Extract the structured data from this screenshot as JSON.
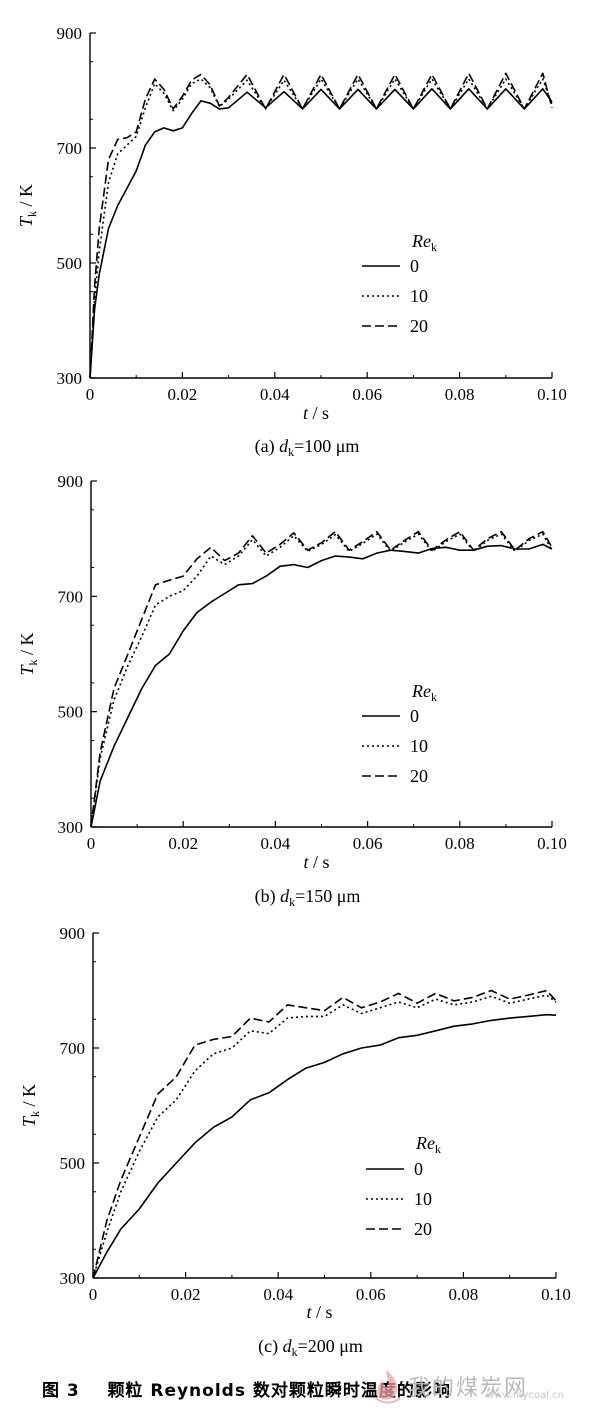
{
  "chart_data": [
    {
      "type": "line",
      "panel_label": "(a)",
      "subtitle": "(a) d",
      "subtitle_sub": "k",
      "subtitle_tail": "=100 μm",
      "ylabel": "T",
      "ylabel_sub": "k",
      "ylabel_unit": " / K",
      "xlabel": "t / s",
      "xlim": [
        0,
        0.1
      ],
      "ylim": [
        300,
        900
      ],
      "xticks": [
        "0",
        "0.02",
        "0.04",
        "0.06",
        "0.08",
        "0.10"
      ],
      "yticks": [
        "300",
        "500",
        "700",
        "900"
      ],
      "legend_title": "Re",
      "legend_title_sub": "k",
      "series": [
        {
          "name": "0",
          "style": "solid",
          "x": [
            0,
            0.001,
            0.002,
            0.004,
            0.006,
            0.008,
            0.01,
            0.012,
            0.014,
            0.016,
            0.018,
            0.02,
            0.022,
            0.024,
            0.026,
            0.028,
            0.03,
            0.034,
            0.038,
            0.042,
            0.046,
            0.05,
            0.054,
            0.058,
            0.062,
            0.066,
            0.07,
            0.074,
            0.078,
            0.082,
            0.086,
            0.09,
            0.094,
            0.098,
            0.1
          ],
          "y": [
            300,
            420,
            480,
            560,
            600,
            630,
            660,
            705,
            728,
            735,
            730,
            735,
            760,
            782,
            778,
            768,
            770,
            797,
            770,
            798,
            768,
            802,
            768,
            802,
            768,
            802,
            768,
            803,
            768,
            803,
            768,
            803,
            768,
            803,
            780
          ]
        },
        {
          "name": "10",
          "style": "dotted",
          "x": [
            0,
            0.001,
            0.002,
            0.004,
            0.006,
            0.008,
            0.01,
            0.012,
            0.014,
            0.016,
            0.018,
            0.02,
            0.022,
            0.024,
            0.026,
            0.028,
            0.03,
            0.034,
            0.038,
            0.042,
            0.046,
            0.05,
            0.054,
            0.058,
            0.062,
            0.066,
            0.07,
            0.074,
            0.078,
            0.082,
            0.086,
            0.09,
            0.094,
            0.098,
            0.1
          ],
          "y": [
            300,
            440,
            520,
            640,
            690,
            705,
            720,
            770,
            812,
            795,
            765,
            785,
            812,
            820,
            805,
            772,
            785,
            818,
            768,
            818,
            768,
            820,
            768,
            820,
            768,
            820,
            768,
            820,
            768,
            820,
            768,
            820,
            768,
            820,
            775
          ]
        },
        {
          "name": "20",
          "style": "dashed",
          "x": [
            0,
            0.001,
            0.002,
            0.004,
            0.006,
            0.008,
            0.01,
            0.012,
            0.014,
            0.016,
            0.018,
            0.02,
            0.022,
            0.024,
            0.026,
            0.028,
            0.03,
            0.034,
            0.038,
            0.042,
            0.046,
            0.05,
            0.054,
            0.058,
            0.062,
            0.066,
            0.07,
            0.074,
            0.078,
            0.082,
            0.086,
            0.09,
            0.094,
            0.098,
            0.1
          ],
          "y": [
            300,
            460,
            560,
            680,
            715,
            718,
            728,
            785,
            820,
            802,
            768,
            790,
            818,
            828,
            810,
            773,
            788,
            828,
            768,
            828,
            768,
            828,
            768,
            828,
            768,
            828,
            768,
            828,
            768,
            830,
            768,
            830,
            768,
            830,
            770
          ]
        }
      ]
    },
    {
      "type": "line",
      "panel_label": "(b)",
      "subtitle": "(b) d",
      "subtitle_sub": "k",
      "subtitle_tail": "=150 μm",
      "ylabel": "T",
      "ylabel_sub": "k",
      "ylabel_unit": " / K",
      "xlabel": "t / s",
      "xlim": [
        0,
        0.1
      ],
      "ylim": [
        300,
        900
      ],
      "xticks": [
        "0",
        "0.02",
        "0.04",
        "0.06",
        "0.08",
        "0.10"
      ],
      "yticks": [
        "300",
        "500",
        "700",
        "900"
      ],
      "legend_title": "Re",
      "legend_title_sub": "k",
      "series": [
        {
          "name": "0",
          "style": "solid",
          "x": [
            0,
            0.002,
            0.005,
            0.008,
            0.011,
            0.014,
            0.017,
            0.02,
            0.023,
            0.026,
            0.029,
            0.032,
            0.035,
            0.038,
            0.041,
            0.044,
            0.047,
            0.05,
            0.053,
            0.056,
            0.059,
            0.062,
            0.065,
            0.068,
            0.071,
            0.074,
            0.077,
            0.08,
            0.083,
            0.086,
            0.089,
            0.092,
            0.095,
            0.098,
            0.1
          ],
          "y": [
            300,
            380,
            440,
            490,
            540,
            580,
            600,
            640,
            672,
            690,
            705,
            720,
            722,
            735,
            752,
            755,
            750,
            762,
            770,
            768,
            765,
            775,
            780,
            778,
            775,
            783,
            785,
            780,
            780,
            787,
            788,
            782,
            782,
            790,
            782
          ]
        },
        {
          "name": "10",
          "style": "dotted",
          "x": [
            0,
            0.002,
            0.005,
            0.008,
            0.011,
            0.014,
            0.017,
            0.02,
            0.023,
            0.026,
            0.029,
            0.032,
            0.035,
            0.038,
            0.041,
            0.044,
            0.047,
            0.05,
            0.053,
            0.056,
            0.059,
            0.062,
            0.065,
            0.068,
            0.071,
            0.074,
            0.077,
            0.08,
            0.083,
            0.086,
            0.089,
            0.092,
            0.095,
            0.098,
            0.1
          ],
          "y": [
            300,
            420,
            520,
            580,
            630,
            685,
            700,
            710,
            735,
            770,
            755,
            770,
            798,
            770,
            785,
            805,
            778,
            790,
            807,
            778,
            792,
            808,
            778,
            794,
            808,
            778,
            795,
            808,
            778,
            797,
            808,
            778,
            797,
            808,
            780
          ]
        },
        {
          "name": "20",
          "style": "dashed",
          "x": [
            0,
            0.002,
            0.005,
            0.008,
            0.011,
            0.014,
            0.017,
            0.02,
            0.023,
            0.026,
            0.029,
            0.032,
            0.035,
            0.038,
            0.041,
            0.044,
            0.047,
            0.05,
            0.053,
            0.056,
            0.059,
            0.062,
            0.065,
            0.068,
            0.071,
            0.074,
            0.077,
            0.08,
            0.083,
            0.086,
            0.089,
            0.092,
            0.095,
            0.098,
            0.1
          ],
          "y": [
            300,
            430,
            540,
            600,
            660,
            720,
            728,
            735,
            765,
            785,
            762,
            775,
            805,
            775,
            790,
            810,
            780,
            793,
            812,
            780,
            795,
            812,
            780,
            797,
            812,
            780,
            798,
            812,
            780,
            800,
            812,
            780,
            800,
            812,
            785
          ]
        }
      ]
    },
    {
      "type": "line",
      "panel_label": "(c)",
      "subtitle": "(c) d",
      "subtitle_sub": "k",
      "subtitle_tail": "=200 μm",
      "ylabel": "T",
      "ylabel_sub": "k",
      "ylabel_unit": " / K",
      "xlabel": "t / s",
      "xlim": [
        0,
        0.1
      ],
      "ylim": [
        300,
        900
      ],
      "xticks": [
        "0",
        "0.02",
        "0.04",
        "0.06",
        "0.08",
        "0.10"
      ],
      "yticks": [
        "300",
        "500",
        "700",
        "900"
      ],
      "legend_title": "Re",
      "legend_title_sub": "k",
      "series": [
        {
          "name": "0",
          "style": "solid",
          "x": [
            0,
            0.003,
            0.006,
            0.01,
            0.014,
            0.018,
            0.022,
            0.026,
            0.03,
            0.034,
            0.038,
            0.042,
            0.046,
            0.05,
            0.054,
            0.058,
            0.062,
            0.066,
            0.07,
            0.074,
            0.078,
            0.082,
            0.086,
            0.09,
            0.094,
            0.098,
            0.1
          ],
          "y": [
            300,
            345,
            385,
            420,
            465,
            500,
            535,
            562,
            580,
            610,
            622,
            645,
            665,
            675,
            690,
            700,
            705,
            718,
            722,
            730,
            738,
            742,
            748,
            752,
            755,
            758,
            757
          ]
        },
        {
          "name": "10",
          "style": "dotted",
          "x": [
            0,
            0.003,
            0.006,
            0.01,
            0.014,
            0.018,
            0.022,
            0.026,
            0.03,
            0.034,
            0.038,
            0.042,
            0.046,
            0.05,
            0.054,
            0.058,
            0.062,
            0.066,
            0.07,
            0.074,
            0.078,
            0.082,
            0.086,
            0.09,
            0.094,
            0.098,
            0.1
          ],
          "y": [
            300,
            380,
            450,
            520,
            580,
            610,
            660,
            690,
            700,
            730,
            725,
            752,
            755,
            755,
            775,
            760,
            770,
            780,
            770,
            785,
            775,
            780,
            790,
            778,
            785,
            792,
            780
          ]
        },
        {
          "name": "20",
          "style": "dashed",
          "x": [
            0,
            0.003,
            0.006,
            0.01,
            0.014,
            0.018,
            0.022,
            0.026,
            0.03,
            0.034,
            0.038,
            0.042,
            0.046,
            0.05,
            0.054,
            0.058,
            0.062,
            0.066,
            0.07,
            0.074,
            0.078,
            0.082,
            0.086,
            0.09,
            0.094,
            0.098,
            0.1
          ],
          "y": [
            300,
            400,
            470,
            545,
            620,
            650,
            705,
            715,
            720,
            752,
            745,
            775,
            770,
            765,
            788,
            770,
            780,
            795,
            778,
            795,
            782,
            788,
            800,
            785,
            792,
            800,
            782
          ]
        }
      ]
    }
  ],
  "caption": {
    "figure_label": "图 3",
    "text": "颗粒 Reynolds 数对颗粒瞬时温度的影响"
  },
  "watermark": {
    "text": "我的煤炭网",
    "url": "www.mycoal.cn"
  }
}
